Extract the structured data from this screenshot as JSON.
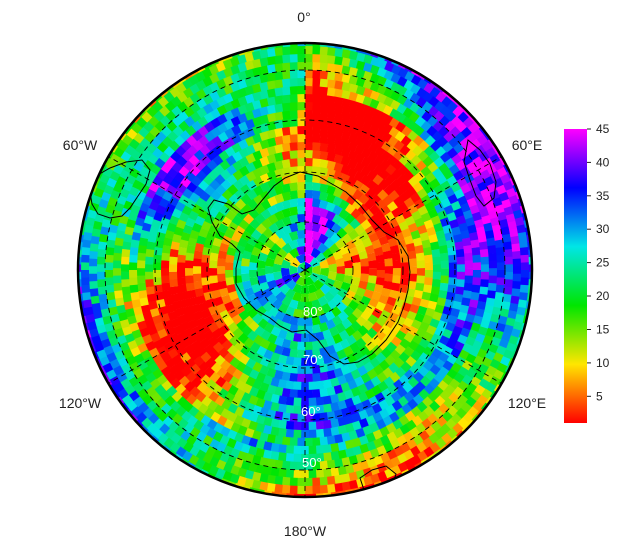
{
  "map": {
    "projection": "south-polar-stereographic",
    "longitude_labels": [
      "0°",
      "60°E",
      "120°E",
      "180°W",
      "120°W",
      "60°W"
    ],
    "latitude_labels": [
      "80°",
      "70°",
      "60°",
      "50°"
    ],
    "graticule_style": "dashed",
    "coastlines": "Antarctica, South America tip, southern Africa, Australia/New Zealand edges"
  },
  "colorbar": {
    "min": 1,
    "max": 45,
    "ticks": [
      "5",
      "10",
      "15",
      "20",
      "25",
      "30",
      "35",
      "40",
      "45"
    ],
    "colormap": "rainbow (red → yellow → green → cyan → blue → magenta)",
    "colors": [
      "#ff0000",
      "#ffe600",
      "#00e600",
      "#00e6e6",
      "#0000ff",
      "#ff00ff"
    ]
  }
}
